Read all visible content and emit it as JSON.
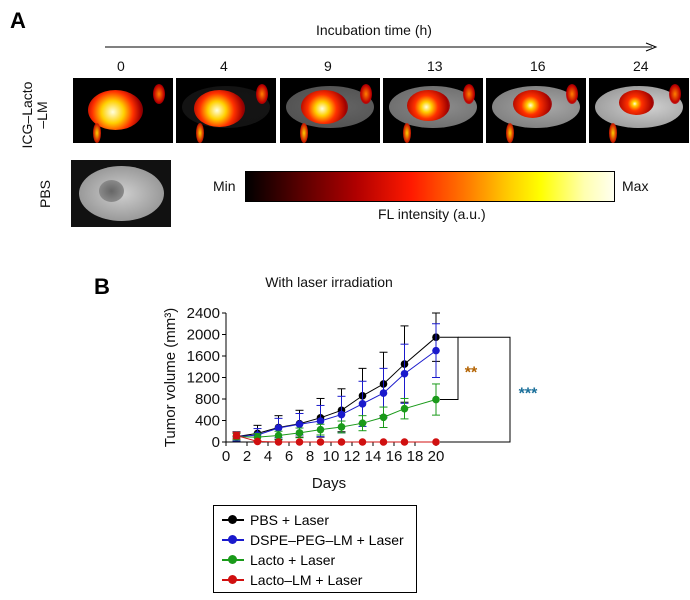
{
  "panel_a": {
    "letter": "A",
    "time_axis_title": "Incubation time (h)",
    "time_points": [
      "0",
      "4",
      "9",
      "13",
      "16",
      "24"
    ],
    "row_labels": {
      "icg_line1": "ICG–Lacto",
      "icg_line2": "–LM",
      "pbs": "PBS"
    },
    "colorbar": {
      "min_label": "Min",
      "max_label": "Max",
      "title": "FL intensity (a.u.)"
    }
  },
  "panel_b": {
    "letter": "B"
  },
  "chart_data": {
    "type": "line",
    "title": "With laser irradiation",
    "xlabel": "Days",
    "ylabel": "Tumor volume (mm³)",
    "xlim": [
      0,
      20
    ],
    "ylim": [
      0,
      2400
    ],
    "xticks": [
      "0",
      "2",
      "4",
      "6",
      "8",
      "10",
      "12",
      "14",
      "16",
      "18",
      "20"
    ],
    "yticks": [
      "0",
      "400",
      "800",
      "1200",
      "1600",
      "2000",
      "2400"
    ],
    "x": [
      1,
      3,
      5,
      7,
      9,
      11,
      13,
      15,
      17,
      20
    ],
    "series": [
      {
        "name": "PBS + Laser",
        "color": "#000000",
        "values": [
          100,
          160,
          270,
          340,
          450,
          590,
          860,
          1080,
          1450,
          1950
        ],
        "errors": [
          90,
          150,
          220,
          250,
          360,
          400,
          510,
          590,
          710,
          450
        ]
      },
      {
        "name": "DSPE–PEG–LM + Laser",
        "color": "#1a1acc",
        "values": [
          100,
          130,
          260,
          330,
          390,
          510,
          710,
          910,
          1270,
          1700
        ],
        "errors": [
          80,
          120,
          180,
          200,
          290,
          340,
          420,
          460,
          550,
          500
        ]
      },
      {
        "name": "Lacto + Laser",
        "color": "#1a9a1a",
        "values": [
          100,
          90,
          120,
          170,
          230,
          280,
          350,
          460,
          620,
          790
        ],
        "errors": [
          60,
          70,
          80,
          90,
          100,
          110,
          140,
          190,
          190,
          290
        ]
      },
      {
        "name": "Lacto–LM + Laser",
        "color": "#d01010",
        "values": [
          120,
          10,
          0,
          0,
          0,
          0,
          0,
          0,
          0,
          0
        ],
        "errors": [
          60,
          10,
          0,
          0,
          0,
          0,
          0,
          0,
          0,
          0
        ]
      }
    ],
    "significance": [
      {
        "from": "PBS + Laser",
        "to": "Lacto + Laser",
        "label": "**"
      },
      {
        "from": "PBS + Laser",
        "to": "Lacto–LM + Laser",
        "label": "***"
      }
    ],
    "legend_placement": "bottom"
  }
}
